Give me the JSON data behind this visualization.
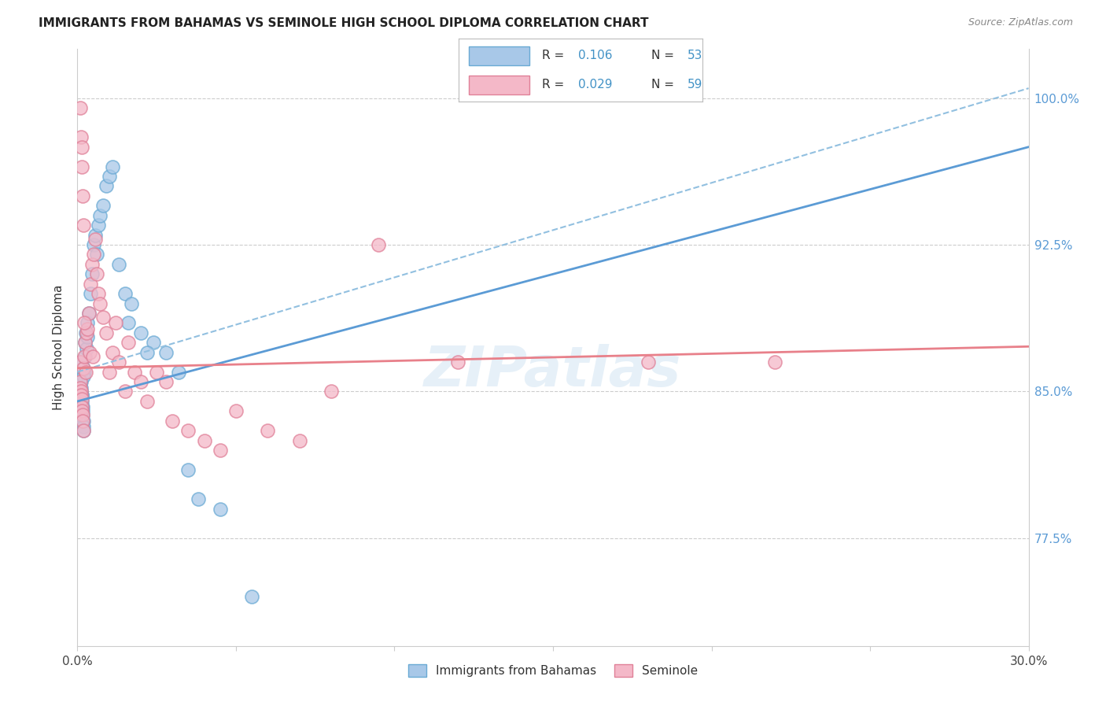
{
  "title": "IMMIGRANTS FROM BAHAMAS VS SEMINOLE HIGH SCHOOL DIPLOMA CORRELATION CHART",
  "source": "Source: ZipAtlas.com",
  "ylabel": "High School Diploma",
  "right_ytick_labels": [
    "77.5%",
    "85.0%",
    "92.5%",
    "100.0%"
  ],
  "right_ytick_values": [
    77.5,
    85.0,
    92.5,
    100.0
  ],
  "xlim": [
    0.0,
    30.0
  ],
  "ylim": [
    72.0,
    102.5
  ],
  "legend_label1": "Immigrants from Bahamas",
  "legend_label2": "Seminole",
  "blue_face": "#a8c8e8",
  "blue_edge": "#6aaad4",
  "pink_face": "#f4b8c8",
  "pink_edge": "#e08098",
  "trend_blue_solid": "#5b9bd5",
  "trend_blue_dash": "#92c0e0",
  "trend_pink": "#e8808a",
  "blue_x": [
    0.08,
    0.09,
    0.1,
    0.11,
    0.12,
    0.13,
    0.14,
    0.15,
    0.16,
    0.17,
    0.18,
    0.19,
    0.2,
    0.22,
    0.25,
    0.27,
    0.3,
    0.35,
    0.4,
    0.45,
    0.5,
    0.55,
    0.6,
    0.65,
    0.7,
    0.8,
    0.9,
    1.0,
    1.1,
    1.3,
    1.5,
    1.7,
    2.0,
    2.4,
    2.8,
    3.2,
    3.8,
    0.08,
    0.09,
    0.1,
    0.12,
    0.14,
    0.16,
    0.18,
    0.2,
    0.24,
    0.28,
    0.32,
    1.6,
    2.2,
    3.5,
    4.5,
    5.5
  ],
  "blue_y": [
    86.5,
    85.8,
    85.5,
    85.2,
    85.0,
    84.8,
    84.5,
    84.2,
    84.0,
    83.8,
    83.5,
    83.2,
    83.0,
    86.0,
    87.5,
    88.0,
    88.5,
    89.0,
    90.0,
    91.0,
    92.5,
    93.0,
    92.0,
    93.5,
    94.0,
    94.5,
    95.5,
    96.0,
    96.5,
    91.5,
    90.0,
    89.5,
    88.0,
    87.5,
    87.0,
    86.0,
    79.5,
    84.5,
    84.0,
    83.8,
    85.5,
    84.8,
    84.2,
    85.8,
    86.2,
    86.8,
    87.2,
    87.8,
    88.5,
    87.0,
    81.0,
    79.0,
    74.5
  ],
  "pink_x": [
    0.08,
    0.09,
    0.1,
    0.11,
    0.12,
    0.13,
    0.14,
    0.15,
    0.16,
    0.17,
    0.18,
    0.2,
    0.22,
    0.25,
    0.28,
    0.3,
    0.35,
    0.4,
    0.45,
    0.5,
    0.55,
    0.6,
    0.65,
    0.7,
    0.8,
    0.9,
    1.0,
    1.1,
    1.2,
    1.3,
    1.5,
    1.6,
    1.8,
    2.0,
    2.2,
    2.5,
    2.8,
    3.0,
    3.5,
    4.0,
    4.5,
    5.0,
    6.0,
    7.0,
    8.0,
    9.5,
    12.0,
    0.09,
    0.11,
    0.13,
    0.15,
    0.17,
    0.19,
    0.21,
    0.26,
    0.38,
    0.48,
    18.0,
    22.0
  ],
  "pink_y": [
    86.5,
    85.5,
    85.2,
    85.0,
    84.8,
    84.6,
    84.2,
    84.0,
    83.8,
    83.5,
    83.0,
    86.2,
    86.8,
    87.5,
    88.0,
    88.2,
    89.0,
    90.5,
    91.5,
    92.0,
    92.8,
    91.0,
    90.0,
    89.5,
    88.8,
    88.0,
    86.0,
    87.0,
    88.5,
    86.5,
    85.0,
    87.5,
    86.0,
    85.5,
    84.5,
    86.0,
    85.5,
    83.5,
    83.0,
    82.5,
    82.0,
    84.0,
    83.0,
    82.5,
    85.0,
    92.5,
    86.5,
    99.5,
    98.0,
    97.5,
    96.5,
    95.0,
    93.5,
    88.5,
    86.0,
    87.0,
    86.8,
    86.5,
    86.5
  ],
  "blue_trend_x0": 0.0,
  "blue_trend_y0": 84.5,
  "blue_trend_x1": 30.0,
  "blue_trend_y1": 97.5,
  "blue_dash_y0": 86.0,
  "blue_dash_y1": 100.5,
  "pink_trend_y0": 86.2,
  "pink_trend_y1": 87.3
}
